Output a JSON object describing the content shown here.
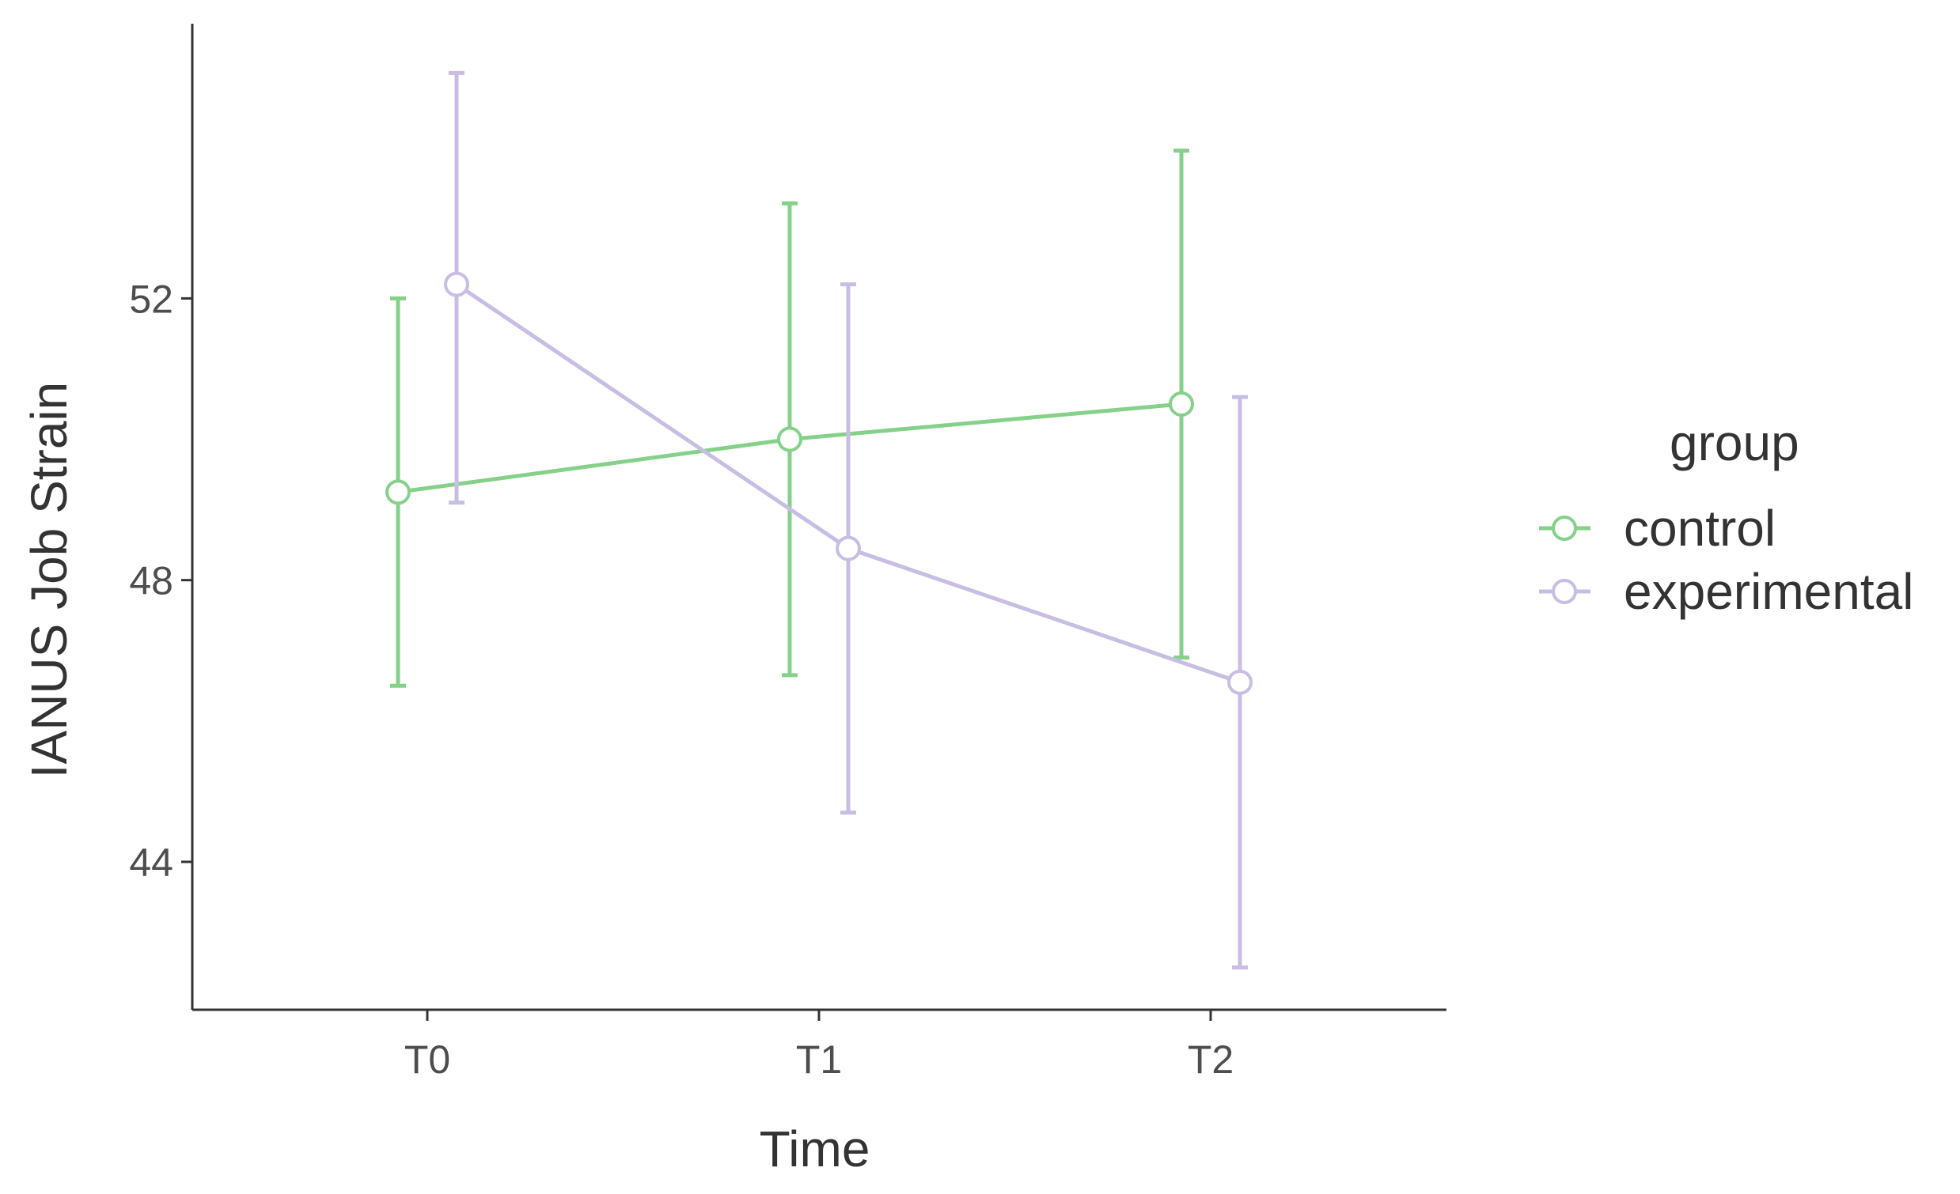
{
  "chart_data": {
    "type": "line",
    "title": "",
    "xlabel": "Time",
    "ylabel": "IANUS Job Strain",
    "categories": [
      "T0",
      "T1",
      "T2"
    ],
    "yticks": [
      "44",
      "48",
      "52"
    ],
    "ylim": [
      41.9,
      55.9
    ],
    "grid": false,
    "legend": {
      "title": "group",
      "position": "right"
    },
    "series": [
      {
        "name": "control",
        "color": "#86d18a",
        "values": [
          49.25,
          50.0,
          50.5
        ],
        "lower": [
          46.5,
          46.65,
          46.9
        ],
        "upper": [
          52.0,
          53.35,
          54.1
        ]
      },
      {
        "name": "experimental",
        "color": "#c8bde3",
        "values": [
          52.2,
          48.45,
          46.55
        ],
        "lower": [
          49.1,
          44.7,
          42.5
        ],
        "upper": [
          55.2,
          52.2,
          50.6
        ]
      }
    ]
  }
}
